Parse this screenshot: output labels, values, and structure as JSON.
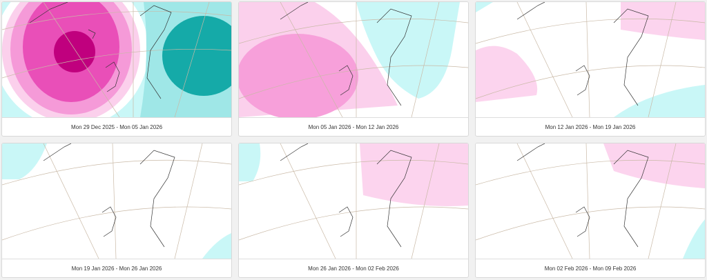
{
  "cards": [
    {
      "caption": "Mon 29 Dec 2025 - Mon 05 Jan 2026"
    },
    {
      "caption": "Mon 05 Jan 2026 - Mon 12 Jan 2026"
    },
    {
      "caption": "Mon 12 Jan 2026 - Mon 19 Jan 2026"
    },
    {
      "caption": "Mon 19 Jan 2026 - Mon 26 Jan 2026"
    },
    {
      "caption": "Mon 26 Jan 2026 - Mon 02 Feb 2026"
    },
    {
      "caption": "Mon 02 Feb 2026 - Mon 09 Feb 2026"
    }
  ]
}
